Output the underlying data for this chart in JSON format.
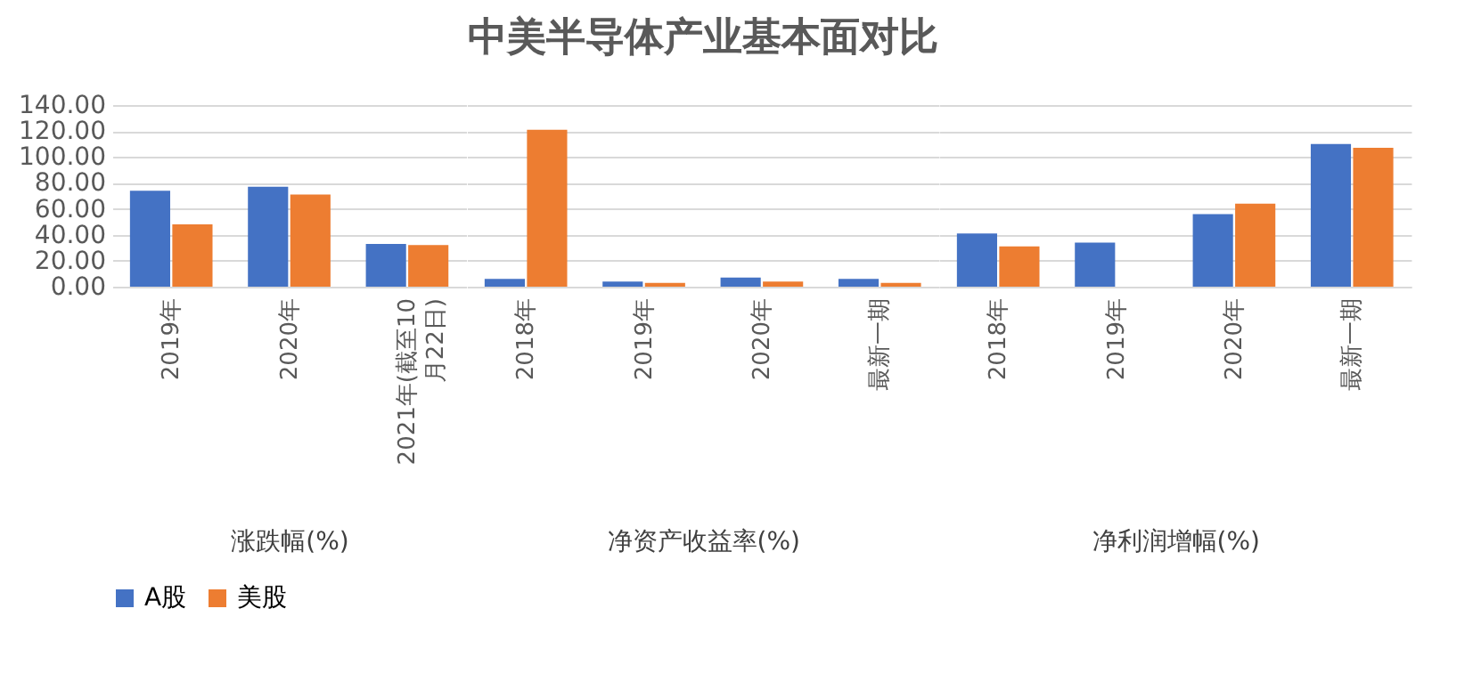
{
  "chart_data": [
    {
      "type": "bar",
      "xlabel": "涨跌幅(%)",
      "categories": [
        "2019年",
        "2020年",
        "2021年(截至10月22日)"
      ],
      "series": [
        {
          "name": "A股",
          "color": "#4472c4",
          "values": [
            74,
            77,
            33
          ]
        },
        {
          "name": "美股",
          "color": "#ed7d31",
          "values": [
            48,
            71,
            32
          ]
        }
      ],
      "ylim": [
        0,
        140
      ],
      "yticks": [
        {
          "value": 0,
          "label": "0.00"
        },
        {
          "value": 20,
          "label": "20.00"
        },
        {
          "value": 40,
          "label": "40.00"
        },
        {
          "value": 60,
          "label": "60.00"
        },
        {
          "value": 80,
          "label": "80.00"
        },
        {
          "value": 100,
          "label": "100.00"
        },
        {
          "value": 120,
          "label": "120.00"
        },
        {
          "value": 140,
          "label": "140.00"
        }
      ],
      "grid": "y",
      "legend": "bottom"
    },
    {
      "type": "bar",
      "title": "中美半导体产业基本面对比",
      "xlabel": "净资产收益率(%)",
      "categories": [
        "2018年",
        "2019年",
        "2020年",
        "最新一期"
      ],
      "series": [
        {
          "color": "#4472c4",
          "values": [
            6,
            4,
            7,
            6
          ]
        },
        {
          "color": "#ed7d31",
          "values": [
            121,
            3,
            4,
            3
          ]
        }
      ],
      "ylim": [
        0,
        140
      ],
      "grid": "y",
      "tick_labels": "x"
    },
    {
      "type": "bar",
      "xlabel": "净利润增幅(%)",
      "categories": [
        "2018年",
        "2019年",
        "2020年",
        "最新一期"
      ],
      "series": [
        {
          "color": "#4472c4",
          "values": [
            41,
            34,
            56,
            110
          ]
        },
        {
          "color": "#ed7d31",
          "values": [
            31,
            null,
            64,
            107
          ]
        }
      ],
      "ylim": [
        0,
        140
      ],
      "grid": "y",
      "tick_labels": "x"
    }
  ]
}
